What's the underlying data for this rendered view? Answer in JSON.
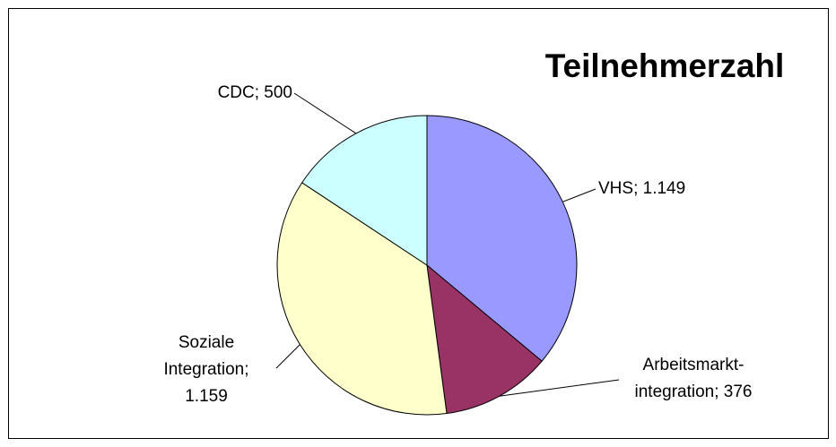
{
  "chart_data": {
    "type": "pie",
    "title": "Teilnehmerzahl",
    "values": [
      1149,
      376,
      1159,
      500
    ],
    "labels": [
      [
        "VHS; 1.149"
      ],
      [
        "Arbeitsmarkt-",
        "integration; 376"
      ],
      [
        "Soziale",
        "Integration;",
        "1.159"
      ],
      [
        "CDC; 500"
      ]
    ],
    "colors": [
      "#9999ff",
      "#993366",
      "#ffffcc",
      "#ccffff"
    ]
  }
}
